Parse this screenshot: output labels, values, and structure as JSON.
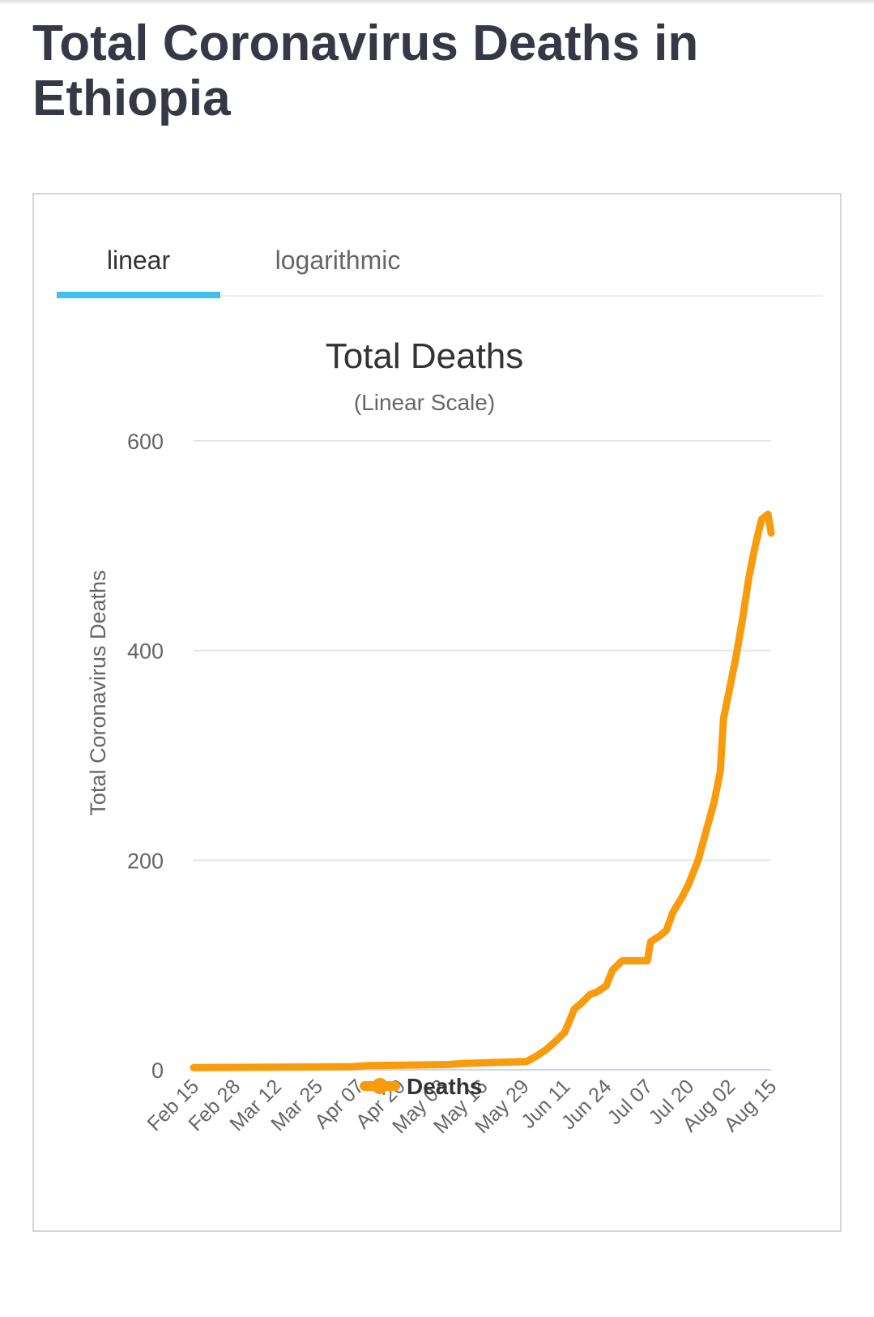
{
  "page": {
    "title": "Total Coronavirus Deaths in Ethiopia"
  },
  "tabs": [
    {
      "label": "linear",
      "active": true
    },
    {
      "label": "logarithmic",
      "active": false
    }
  ],
  "colors": {
    "line": "#f89c0e",
    "tab_active": "#3fc1ee",
    "grid": "#e6e6e6",
    "text": "#333333"
  },
  "chart_data": {
    "type": "line",
    "title": "Total Deaths",
    "subtitle": "(Linear Scale)",
    "ylabel": "Total Coronavirus Deaths",
    "xlabel": "",
    "ylim": [
      0,
      600
    ],
    "yticks": [
      0,
      200,
      400,
      600
    ],
    "xticks": [
      "Feb 15",
      "Feb 28",
      "Mar 12",
      "Mar 25",
      "Apr 07",
      "Apr 20",
      "May 03",
      "May 16",
      "May 29",
      "Jun 11",
      "Jun 24",
      "Jul 07",
      "Jul 20",
      "Aug 02",
      "Aug 15"
    ],
    "grid": true,
    "legend_position": "bottom",
    "series": [
      {
        "name": "Deaths",
        "x": [
          "2020-02-15",
          "2020-04-05",
          "2020-04-10",
          "2020-05-05",
          "2020-05-10",
          "2020-05-30",
          "2020-06-02",
          "2020-06-05",
          "2020-06-08",
          "2020-06-11",
          "2020-06-14",
          "2020-06-16",
          "2020-06-19",
          "2020-06-21",
          "2020-06-24",
          "2020-06-26",
          "2020-06-29",
          "2020-07-01",
          "2020-07-07",
          "2020-07-08",
          "2020-07-11",
          "2020-07-13",
          "2020-07-15",
          "2020-07-18",
          "2020-07-20",
          "2020-07-23",
          "2020-07-25",
          "2020-07-28",
          "2020-07-30",
          "2020-07-31",
          "2020-08-02",
          "2020-08-04",
          "2020-08-06",
          "2020-08-08",
          "2020-08-10",
          "2020-08-12",
          "2020-08-14",
          "2020-08-15"
        ],
        "y": [
          2,
          3,
          4,
          5,
          6,
          8,
          13,
          19,
          27,
          36,
          58,
          63,
          72,
          74,
          80,
          95,
          104,
          104,
          104,
          122,
          128,
          133,
          150,
          165,
          177,
          200,
          222,
          255,
          285,
          335,
          365,
          395,
          430,
          470,
          500,
          525,
          530,
          512
        ]
      }
    ]
  }
}
